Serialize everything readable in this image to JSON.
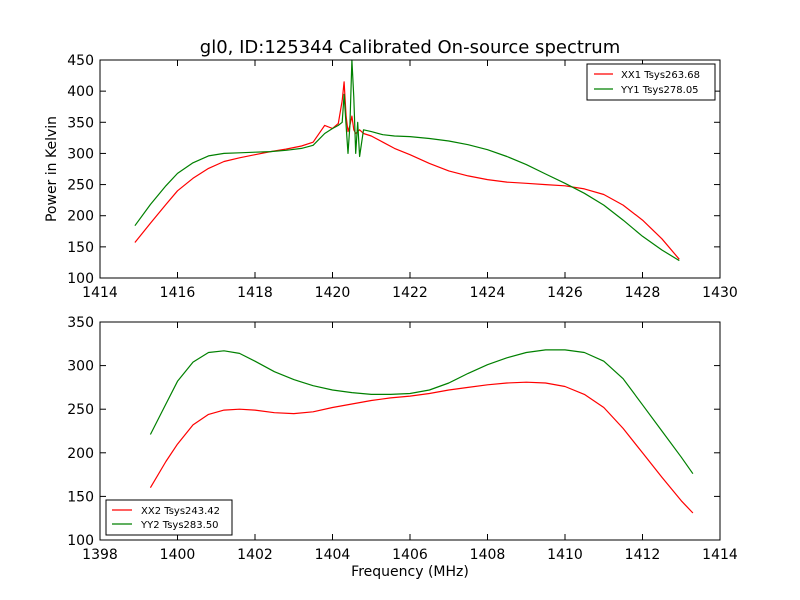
{
  "chart_data": [
    {
      "type": "line",
      "title": "gl0, ID:125344 Calibrated On-source spectrum",
      "xlabel": "",
      "ylabel": "Power in Kelvin",
      "xlim": [
        1414,
        1430
      ],
      "ylim": [
        100,
        450
      ],
      "xticks": [
        "1414",
        "1416",
        "1418",
        "1420",
        "1422",
        "1424",
        "1426",
        "1428",
        "1430"
      ],
      "yticks": [
        "100",
        "150",
        "200",
        "250",
        "300",
        "350",
        "400",
        "450"
      ],
      "grid": false,
      "legend_position": "top-right",
      "series": [
        {
          "name": "XX1 Tsys263.68",
          "color": "#ff0000",
          "x": [
            1414.9,
            1415.3,
            1415.7,
            1416.0,
            1416.4,
            1416.8,
            1417.2,
            1417.6,
            1418.0,
            1418.4,
            1418.8,
            1419.2,
            1419.5,
            1419.8,
            1420.0,
            1420.15,
            1420.25,
            1420.3,
            1420.35,
            1420.4,
            1420.45,
            1420.5,
            1420.55,
            1420.6,
            1420.7,
            1420.8,
            1421.0,
            1421.3,
            1421.6,
            1422.0,
            1422.5,
            1423.0,
            1423.5,
            1424.0,
            1424.5,
            1425.0,
            1425.5,
            1426.0,
            1426.5,
            1427.0,
            1427.5,
            1428.0,
            1428.5,
            1428.95
          ],
          "y": [
            157,
            188,
            218,
            240,
            260,
            276,
            287,
            293,
            298,
            303,
            307,
            312,
            318,
            345,
            340,
            348,
            385,
            415,
            360,
            335,
            345,
            360,
            338,
            332,
            338,
            332,
            328,
            318,
            308,
            298,
            284,
            272,
            264,
            258,
            254,
            252,
            250,
            248,
            243,
            234,
            217,
            193,
            163,
            130
          ]
        },
        {
          "name": "YY1 Tsys278.05",
          "color": "#008000",
          "x": [
            1414.9,
            1415.3,
            1415.7,
            1416.0,
            1416.4,
            1416.8,
            1417.2,
            1417.6,
            1418.0,
            1418.4,
            1418.8,
            1419.2,
            1419.5,
            1419.8,
            1420.0,
            1420.15,
            1420.25,
            1420.3,
            1420.35,
            1420.4,
            1420.45,
            1420.5,
            1420.55,
            1420.6,
            1420.65,
            1420.7,
            1420.8,
            1421.0,
            1421.3,
            1421.6,
            1422.0,
            1422.5,
            1423.0,
            1423.5,
            1424.0,
            1424.5,
            1425.0,
            1425.5,
            1426.0,
            1426.5,
            1427.0,
            1427.5,
            1428.0,
            1428.5,
            1428.95
          ],
          "y": [
            184,
            218,
            248,
            268,
            285,
            296,
            300,
            301,
            302,
            303,
            305,
            308,
            313,
            332,
            340,
            345,
            350,
            395,
            345,
            300,
            345,
            450,
            390,
            300,
            350,
            295,
            338,
            335,
            330,
            328,
            327,
            324,
            320,
            314,
            306,
            295,
            282,
            267,
            252,
            236,
            217,
            193,
            167,
            145,
            128
          ]
        }
      ]
    },
    {
      "type": "line",
      "title": "",
      "xlabel": "Frequency (MHz)",
      "ylabel": "",
      "xlim": [
        1398,
        1414
      ],
      "ylim": [
        100,
        350
      ],
      "xticks": [
        "1398",
        "1400",
        "1402",
        "1404",
        "1406",
        "1408",
        "1410",
        "1412",
        "1414"
      ],
      "yticks": [
        "100",
        "150",
        "200",
        "250",
        "300",
        "350"
      ],
      "grid": false,
      "legend_position": "bottom-left",
      "series": [
        {
          "name": "XX2 Tsys243.42",
          "color": "#ff0000",
          "x": [
            1399.3,
            1399.7,
            1400.0,
            1400.4,
            1400.8,
            1401.2,
            1401.6,
            1402.0,
            1402.5,
            1403.0,
            1403.5,
            1404.0,
            1404.5,
            1405.0,
            1405.5,
            1406.0,
            1406.5,
            1407.0,
            1407.5,
            1408.0,
            1408.5,
            1409.0,
            1409.5,
            1410.0,
            1410.5,
            1411.0,
            1411.5,
            1412.0,
            1412.5,
            1413.0,
            1413.3
          ],
          "y": [
            160,
            190,
            210,
            232,
            244,
            249,
            250,
            249,
            246,
            245,
            247,
            252,
            256,
            260,
            263,
            265,
            268,
            272,
            275,
            278,
            280,
            281,
            280,
            276,
            267,
            252,
            228,
            200,
            172,
            145,
            131
          ]
        },
        {
          "name": "YY2 Tsys283.50",
          "color": "#008000",
          "x": [
            1399.3,
            1399.7,
            1400.0,
            1400.4,
            1400.8,
            1401.2,
            1401.6,
            1402.0,
            1402.5,
            1403.0,
            1403.5,
            1404.0,
            1404.5,
            1405.0,
            1405.5,
            1406.0,
            1406.5,
            1407.0,
            1407.5,
            1408.0,
            1408.5,
            1409.0,
            1409.5,
            1410.0,
            1410.5,
            1411.0,
            1411.5,
            1412.0,
            1412.5,
            1413.0,
            1413.3
          ],
          "y": [
            221,
            256,
            282,
            304,
            315,
            317,
            314,
            305,
            293,
            284,
            277,
            272,
            269,
            267,
            267,
            268,
            272,
            280,
            291,
            301,
            309,
            315,
            318,
            318,
            315,
            305,
            285,
            255,
            225,
            195,
            176
          ]
        }
      ]
    }
  ]
}
